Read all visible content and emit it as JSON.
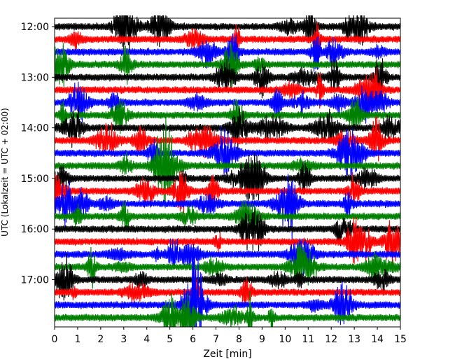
{
  "chart_data": {
    "type": "line",
    "title": "",
    "xlabel": "Zeit  [min]",
    "ylabel": "UTC (Lokalzeit = UTC + 02:00)",
    "xlim": [
      0,
      15
    ],
    "x_ticks": [
      0,
      1,
      2,
      3,
      4,
      5,
      6,
      7,
      8,
      9,
      10,
      11,
      12,
      13,
      14,
      15
    ],
    "x_tick_labels": [
      "0",
      "1",
      "2",
      "3",
      "4",
      "5",
      "6",
      "7",
      "8",
      "9",
      "10",
      "11",
      "12",
      "13",
      "14",
      "15"
    ],
    "y_tick_labels": [
      "12:00",
      "13:00",
      "14:00",
      "15:00",
      "16:00",
      "17:00"
    ],
    "y_tick_minutes": [
      0,
      60,
      120,
      180,
      240,
      300
    ],
    "ylim_minutes": [
      -10,
      356
    ],
    "y_inverted": true,
    "trace_interval_minutes": 15,
    "trace_colors": [
      "#000000",
      "#ff0000",
      "#0000ff",
      "#008000"
    ],
    "trace_start_minutes": [
      0,
      15,
      30,
      45,
      60,
      75,
      90,
      105,
      120,
      135,
      150,
      165,
      180,
      195,
      210,
      225,
      240,
      255,
      270,
      285,
      300,
      315,
      330,
      345
    ],
    "grid": false,
    "legend": "none"
  }
}
